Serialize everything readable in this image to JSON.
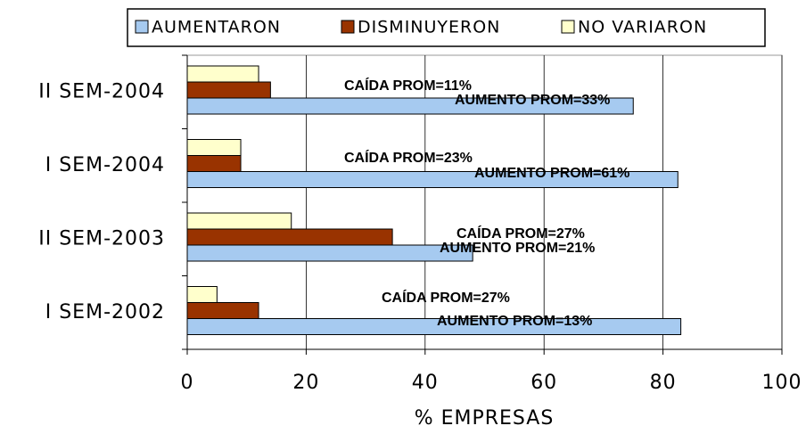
{
  "chart_data": {
    "type": "hbar",
    "categories": [
      "II SEM-2004",
      "I SEM-2004",
      "II SEM-2003",
      "I SEM-2002"
    ],
    "series": [
      {
        "name": "AUMENTARON",
        "color": "#a6caf0",
        "values": [
          75,
          82.5,
          48,
          83
        ]
      },
      {
        "name": "DISMINUYERON",
        "color": "#993300",
        "values": [
          14,
          9,
          34.5,
          12
        ]
      },
      {
        "name": "NO VARIARON",
        "color": "#ffffcc",
        "values": [
          12,
          9,
          17.5,
          5
        ]
      }
    ],
    "xlim": [
      0,
      100
    ],
    "xticks": [
      0,
      20,
      40,
      60,
      80,
      100
    ],
    "grid": true,
    "xlabel": "% EMPRESAS",
    "legend": "top",
    "annotations": [
      "CAÍDA PROM=11%",
      "AUMENTO PROM=33%",
      "CAÍDA PROM=23%",
      "AUMENTO PROM=61%",
      "CAÍDA PROM=27%",
      "AUMENTO PROM=21%",
      "CAÍDA PROM=27%",
      "AUMENTO PROM=13%"
    ]
  }
}
